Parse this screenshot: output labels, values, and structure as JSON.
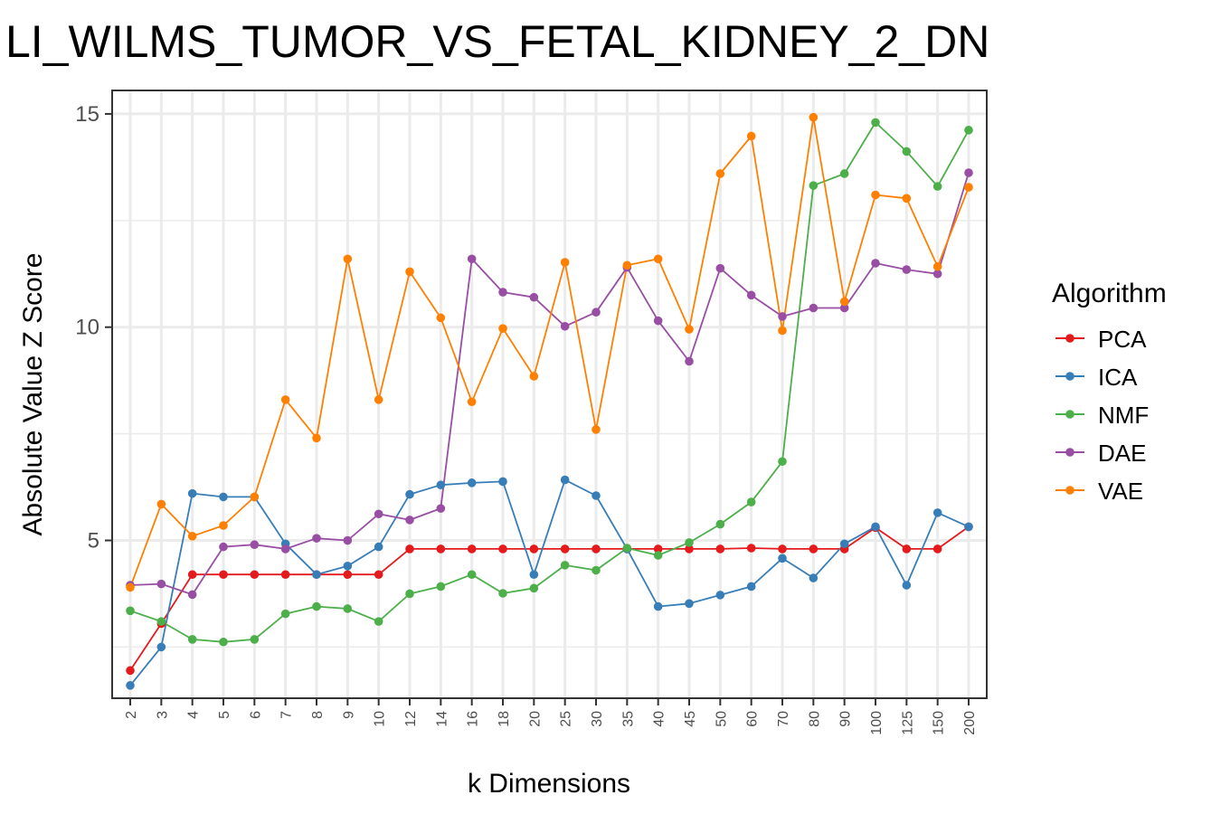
{
  "chart_data": {
    "type": "line",
    "title": "LI_WILMS_TUMOR_VS_FETAL_KIDNEY_2_DN",
    "xlabel": "k Dimensions",
    "ylabel": "Absolute Value Z Score",
    "categories": [
      "2",
      "3",
      "4",
      "5",
      "6",
      "7",
      "8",
      "9",
      "10",
      "12",
      "14",
      "16",
      "18",
      "20",
      "25",
      "30",
      "35",
      "40",
      "45",
      "50",
      "60",
      "70",
      "80",
      "90",
      "100",
      "125",
      "150",
      "200"
    ],
    "yticks": [
      5,
      10,
      15
    ],
    "ylim": [
      1.3,
      15.55
    ],
    "grid": true,
    "legend": {
      "title": "Algorithm",
      "position": "right"
    },
    "series": [
      {
        "name": "PCA",
        "color": "#e41a1c",
        "values": [
          1.95,
          3.05,
          4.2,
          4.2,
          4.2,
          4.2,
          4.2,
          4.2,
          4.2,
          4.8,
          4.8,
          4.8,
          4.8,
          4.8,
          4.8,
          4.8,
          4.8,
          4.8,
          4.8,
          4.8,
          4.82,
          4.8,
          4.8,
          4.8,
          5.3,
          4.8,
          4.8,
          5.32
        ]
      },
      {
        "name": "ICA",
        "color": "#377eb8",
        "values": [
          1.6,
          2.5,
          6.1,
          6.02,
          6.02,
          4.92,
          4.2,
          4.4,
          4.85,
          6.08,
          6.3,
          6.35,
          6.38,
          4.2,
          6.42,
          6.05,
          4.8,
          3.45,
          3.52,
          3.72,
          3.92,
          4.58,
          4.12,
          4.92,
          5.32,
          3.95,
          5.65,
          5.32
        ]
      },
      {
        "name": "NMF",
        "color": "#4daf4a",
        "values": [
          3.35,
          3.1,
          2.68,
          2.62,
          2.68,
          3.28,
          3.45,
          3.4,
          3.1,
          3.75,
          3.92,
          4.2,
          3.76,
          3.88,
          4.42,
          4.3,
          4.82,
          4.65,
          4.95,
          5.38,
          5.9,
          6.85,
          13.32,
          13.6,
          14.8,
          14.12,
          13.3,
          14.62
        ]
      },
      {
        "name": "DAE",
        "color": "#984ea3",
        "values": [
          3.95,
          3.98,
          3.73,
          4.85,
          4.9,
          4.8,
          5.05,
          5.0,
          5.62,
          5.48,
          5.75,
          11.6,
          10.82,
          10.7,
          10.02,
          10.35,
          11.4,
          10.15,
          9.2,
          11.38,
          10.75,
          10.25,
          10.45,
          10.45,
          11.5,
          11.35,
          11.25,
          13.62
        ]
      },
      {
        "name": "VAE",
        "color": "#ff7f00",
        "values": [
          3.9,
          5.85,
          5.1,
          5.35,
          6.02,
          8.3,
          7.4,
          11.6,
          8.3,
          11.3,
          10.22,
          8.25,
          9.97,
          8.85,
          11.52,
          7.6,
          11.45,
          11.6,
          9.95,
          13.6,
          14.48,
          9.92,
          14.92,
          10.6,
          13.1,
          13.02,
          11.42,
          13.28
        ]
      }
    ]
  }
}
